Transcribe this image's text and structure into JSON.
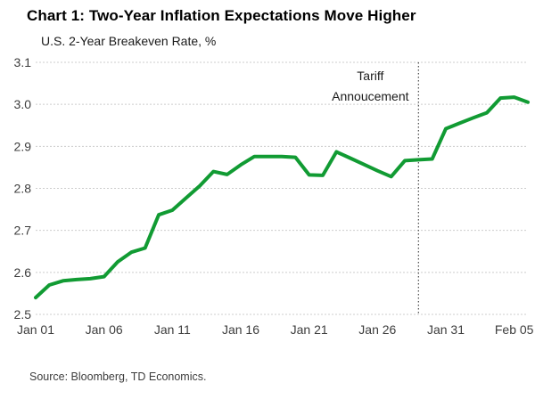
{
  "header": {
    "title": "Chart 1: Two-Year Inflation Expectations Move Higher",
    "subtitle": "U.S. 2-Year Breakeven Rate, %"
  },
  "footer": {
    "source": "Source: Bloomberg, TD Economics."
  },
  "chart_data": {
    "type": "line",
    "title": "Chart 1: Two-Year Inflation Expectations Move Higher",
    "subtitle": "U.S. 2-Year Breakeven Rate, %",
    "x": [
      "Jan 01",
      "Jan 02",
      "Jan 03",
      "Jan 04",
      "Jan 05",
      "Jan 06",
      "Jan 07",
      "Jan 08",
      "Jan 09",
      "Jan 10",
      "Jan 11",
      "Jan 12",
      "Jan 13",
      "Jan 14",
      "Jan 15",
      "Jan 16",
      "Jan 17",
      "Jan 18",
      "Jan 19",
      "Jan 20",
      "Jan 21",
      "Jan 22",
      "Jan 23",
      "Jan 24",
      "Jan 25",
      "Jan 26",
      "Jan 27",
      "Jan 28",
      "Jan 29",
      "Jan 30",
      "Jan 31",
      "Feb 01",
      "Feb 02",
      "Feb 03",
      "Feb 04",
      "Feb 05",
      "Feb 06"
    ],
    "values": [
      2.54,
      2.57,
      2.58,
      2.583,
      2.585,
      2.59,
      2.625,
      2.648,
      2.658,
      2.737,
      2.748,
      2.777,
      2.806,
      2.84,
      2.833,
      2.856,
      2.876,
      2.876,
      2.876,
      2.874,
      2.832,
      2.831,
      2.887,
      2.872,
      2.857,
      2.842,
      2.828,
      2.866,
      2.868,
      2.87,
      2.942,
      2.955,
      2.968,
      2.98,
      3.015,
      3.017,
      3.005
    ],
    "xtick_indices": [
      0,
      5,
      10,
      15,
      20,
      25,
      30,
      35
    ],
    "xtick_labels": [
      "Jan 01",
      "Jan 06",
      "Jan 11",
      "Jan 16",
      "Jan 21",
      "Jan 26",
      "Jan 31",
      "Feb 05"
    ],
    "ytick_labels": [
      "2.5",
      "2.6",
      "2.7",
      "2.8",
      "2.9",
      "3.0",
      "3.1"
    ],
    "yticks": [
      2.5,
      2.6,
      2.7,
      2.8,
      2.9,
      3.0,
      3.1
    ],
    "ylim": [
      2.5,
      3.1
    ],
    "grid": "horizontal-dotted",
    "legend": "none",
    "line_color": "#119b33",
    "grid_color": "#cccccc",
    "axis_text_color": "#3d3d3d",
    "annotation": {
      "lines": [
        "Tariff",
        "Annoucement"
      ],
      "x_index": 28,
      "marker": "dotted-vertical-line",
      "line_color": "#4a4a4a",
      "text_color": "#1a1a1a"
    }
  }
}
